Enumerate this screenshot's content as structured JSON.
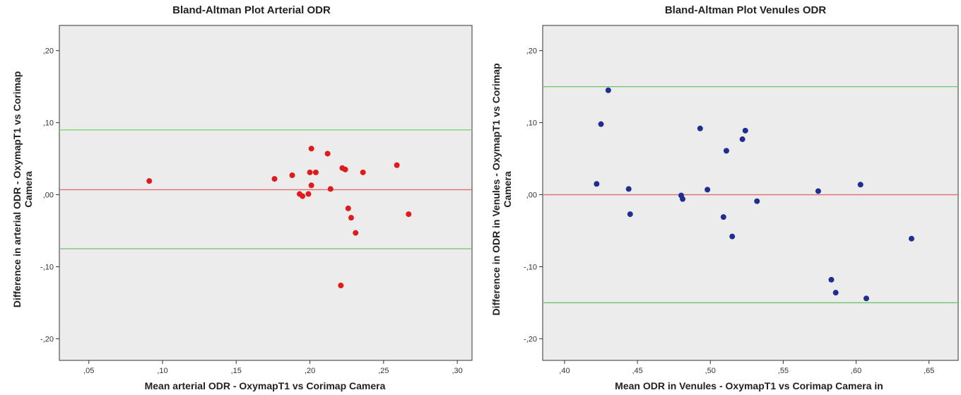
{
  "chart_data": [
    {
      "type": "scatter",
      "title": "Bland-Altman Plot Arterial ODR",
      "xlabel": "Mean arterial ODR - OxymapT1 vs Corimap Camera",
      "ylabel_lines": [
        "Difference in arterial ODR - OxymapT1 vs Corimap",
        "Camera"
      ],
      "xlim": [
        0.03,
        0.31
      ],
      "ylim": [
        -0.23,
        0.235
      ],
      "x_ticks": [
        0.05,
        0.1,
        0.15,
        0.2,
        0.25,
        0.3
      ],
      "x_tick_labels": [
        ",05",
        ",10",
        ",15",
        ",20",
        ",25",
        ",30"
      ],
      "y_ticks": [
        0.2,
        0.1,
        0.0,
        -0.1,
        -0.2
      ],
      "y_tick_labels": [
        ",20",
        ",10",
        ",00",
        "-,10",
        "-,20"
      ],
      "grid": false,
      "point_color": "#e01b1b",
      "mean_line": {
        "y": 0.007,
        "color": "#e07070"
      },
      "limit_lines": [
        {
          "y": 0.09,
          "color": "#7fd07f"
        },
        {
          "y": -0.075,
          "color": "#6cc46c"
        }
      ],
      "points": [
        {
          "x": 0.091,
          "y": 0.019
        },
        {
          "x": 0.176,
          "y": 0.022
        },
        {
          "x": 0.188,
          "y": 0.027
        },
        {
          "x": 0.193,
          "y": 0.001
        },
        {
          "x": 0.195,
          "y": -0.002
        },
        {
          "x": 0.199,
          "y": 0.001
        },
        {
          "x": 0.2,
          "y": 0.031
        },
        {
          "x": 0.201,
          "y": 0.064
        },
        {
          "x": 0.201,
          "y": 0.013
        },
        {
          "x": 0.204,
          "y": 0.031
        },
        {
          "x": 0.212,
          "y": 0.057
        },
        {
          "x": 0.214,
          "y": 0.008
        },
        {
          "x": 0.222,
          "y": 0.037
        },
        {
          "x": 0.224,
          "y": 0.035
        },
        {
          "x": 0.221,
          "y": -0.126
        },
        {
          "x": 0.226,
          "y": -0.019
        },
        {
          "x": 0.228,
          "y": -0.032
        },
        {
          "x": 0.231,
          "y": -0.053
        },
        {
          "x": 0.236,
          "y": 0.031
        },
        {
          "x": 0.259,
          "y": 0.041
        },
        {
          "x": 0.267,
          "y": -0.027
        }
      ]
    },
    {
      "type": "scatter",
      "title": "Bland-Altman Plot Venules ODR",
      "xlabel": "Mean ODR in Venules - OxymapT1 vs Corimap Camera in",
      "ylabel_lines": [
        "Difference in ODR in Venules - OxymapT1 vs Corimap",
        "Camera"
      ],
      "xlim": [
        0.385,
        0.67
      ],
      "ylim": [
        -0.23,
        0.235
      ],
      "x_ticks": [
        0.4,
        0.45,
        0.5,
        0.55,
        0.6,
        0.65
      ],
      "x_tick_labels": [
        ",40",
        ",45",
        ",50",
        ",55",
        ",60",
        ",65"
      ],
      "y_ticks": [
        0.2,
        0.1,
        0.0,
        -0.1,
        -0.2
      ],
      "y_tick_labels": [
        ",20",
        ",10",
        ",00",
        "-,10",
        "-,20"
      ],
      "grid": false,
      "point_color": "#1f2e8f",
      "mean_line": {
        "y": 0.0,
        "color": "#e07070"
      },
      "limit_lines": [
        {
          "y": 0.15,
          "color": "#6cc46c"
        },
        {
          "y": -0.15,
          "color": "#6cc46c"
        }
      ],
      "points": [
        {
          "x": 0.422,
          "y": 0.015
        },
        {
          "x": 0.425,
          "y": 0.098
        },
        {
          "x": 0.43,
          "y": 0.145
        },
        {
          "x": 0.444,
          "y": 0.008
        },
        {
          "x": 0.445,
          "y": -0.027
        },
        {
          "x": 0.48,
          "y": -0.001
        },
        {
          "x": 0.481,
          "y": -0.006
        },
        {
          "x": 0.493,
          "y": 0.092
        },
        {
          "x": 0.498,
          "y": 0.007
        },
        {
          "x": 0.509,
          "y": -0.031
        },
        {
          "x": 0.511,
          "y": 0.061
        },
        {
          "x": 0.515,
          "y": -0.058
        },
        {
          "x": 0.522,
          "y": 0.077
        },
        {
          "x": 0.524,
          "y": 0.089
        },
        {
          "x": 0.532,
          "y": -0.009
        },
        {
          "x": 0.574,
          "y": 0.005
        },
        {
          "x": 0.583,
          "y": -0.118
        },
        {
          "x": 0.586,
          "y": -0.136
        },
        {
          "x": 0.603,
          "y": 0.014
        },
        {
          "x": 0.607,
          "y": -0.144
        },
        {
          "x": 0.638,
          "y": -0.061
        }
      ]
    }
  ]
}
